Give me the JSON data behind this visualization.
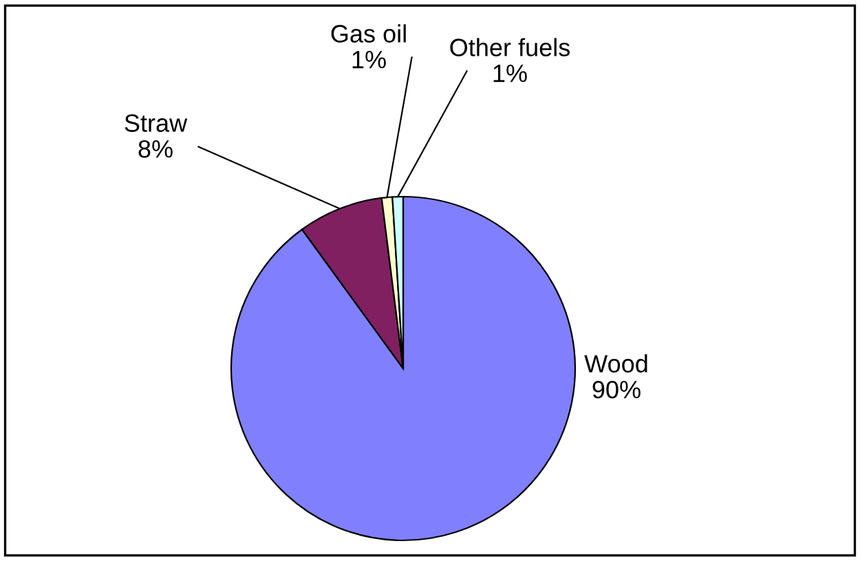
{
  "chart_data": {
    "type": "pie",
    "categories": [
      "Wood",
      "Straw",
      "Gas oil",
      "Other fuels"
    ],
    "values": [
      90,
      8,
      1,
      1
    ],
    "colors": [
      "#8080ff",
      "#802060",
      "#ffffcc",
      "#ccffff"
    ],
    "value_labels": [
      "90%",
      "8%",
      "1%",
      "1%"
    ],
    "legend": false
  }
}
